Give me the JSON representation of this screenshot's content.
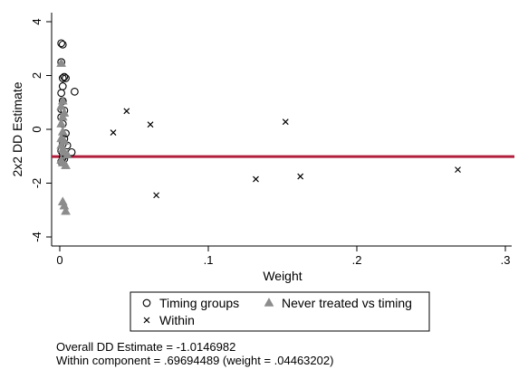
{
  "chart_data": {
    "type": "scatter",
    "xlabel": "Weight",
    "ylabel": "2x2 DD Estimate",
    "xlim": [
      0,
      0.3
    ],
    "ylim": [
      -4,
      4
    ],
    "x_ticks": [
      0,
      0.1,
      0.2,
      0.3
    ],
    "x_tick_labels": [
      "0",
      ".1",
      ".2",
      ".3"
    ],
    "y_ticks": [
      -4,
      -2,
      0,
      2,
      4
    ],
    "y_tick_labels": [
      "-4",
      "-2",
      "0",
      "2",
      "4"
    ],
    "grid": false,
    "legend_position": "bottom",
    "reference_line": {
      "y": -1.0146982,
      "color": "#b01e3c"
    },
    "series": [
      {
        "name": "Timing groups",
        "marker": "circle-hollow",
        "points": [
          [
            0.001,
            3.2
          ],
          [
            0.002,
            3.15
          ],
          [
            0.001,
            2.5
          ],
          [
            0.002,
            1.9
          ],
          [
            0.003,
            1.95
          ],
          [
            0.004,
            1.9
          ],
          [
            0.002,
            1.6
          ],
          [
            0.001,
            1.35
          ],
          [
            0.01,
            1.4
          ],
          [
            0.002,
            1.05
          ],
          [
            0.001,
            0.75
          ],
          [
            0.003,
            0.7
          ],
          [
            0.001,
            0.45
          ],
          [
            0.002,
            0.2
          ],
          [
            0.004,
            -0.15
          ],
          [
            0.003,
            -0.35
          ],
          [
            0.002,
            -0.55
          ],
          [
            0.005,
            -0.6
          ],
          [
            0.001,
            -0.8
          ],
          [
            0.008,
            -0.85
          ],
          [
            0.002,
            -0.9
          ],
          [
            0.004,
            -0.95
          ],
          [
            0.002,
            -1.05
          ],
          [
            0.001,
            -1.2
          ],
          [
            0.003,
            -1.1
          ]
        ]
      },
      {
        "name": "Never treated vs timing",
        "marker": "triangle-filled",
        "points": [
          [
            0.001,
            2.45
          ],
          [
            0.002,
            1.05
          ],
          [
            0.001,
            0.85
          ],
          [
            0.003,
            0.6
          ],
          [
            0.002,
            0.45
          ],
          [
            0.001,
            0.2
          ],
          [
            0.002,
            -0.1
          ],
          [
            0.001,
            -0.35
          ],
          [
            0.003,
            -0.45
          ],
          [
            0.001,
            -0.6
          ],
          [
            0.002,
            -0.75
          ],
          [
            0.003,
            -0.85
          ],
          [
            0.005,
            -0.95
          ],
          [
            0.001,
            -1.15
          ],
          [
            0.002,
            -1.25
          ],
          [
            0.004,
            -1.35
          ],
          [
            0.002,
            -2.7
          ],
          [
            0.003,
            -2.85
          ],
          [
            0.004,
            -3.05
          ]
        ]
      },
      {
        "name": "Within",
        "marker": "x",
        "points": [
          [
            0.036,
            -0.12
          ],
          [
            0.045,
            0.68
          ],
          [
            0.061,
            0.18
          ],
          [
            0.065,
            -2.45
          ],
          [
            0.132,
            -1.85
          ],
          [
            0.152,
            0.28
          ],
          [
            0.162,
            -1.75
          ],
          [
            0.268,
            -1.5
          ]
        ]
      }
    ],
    "annotations": [
      "Overall DD Estimate = -1.0146982",
      "Within component = .69694489 (weight = .04463202)"
    ]
  }
}
